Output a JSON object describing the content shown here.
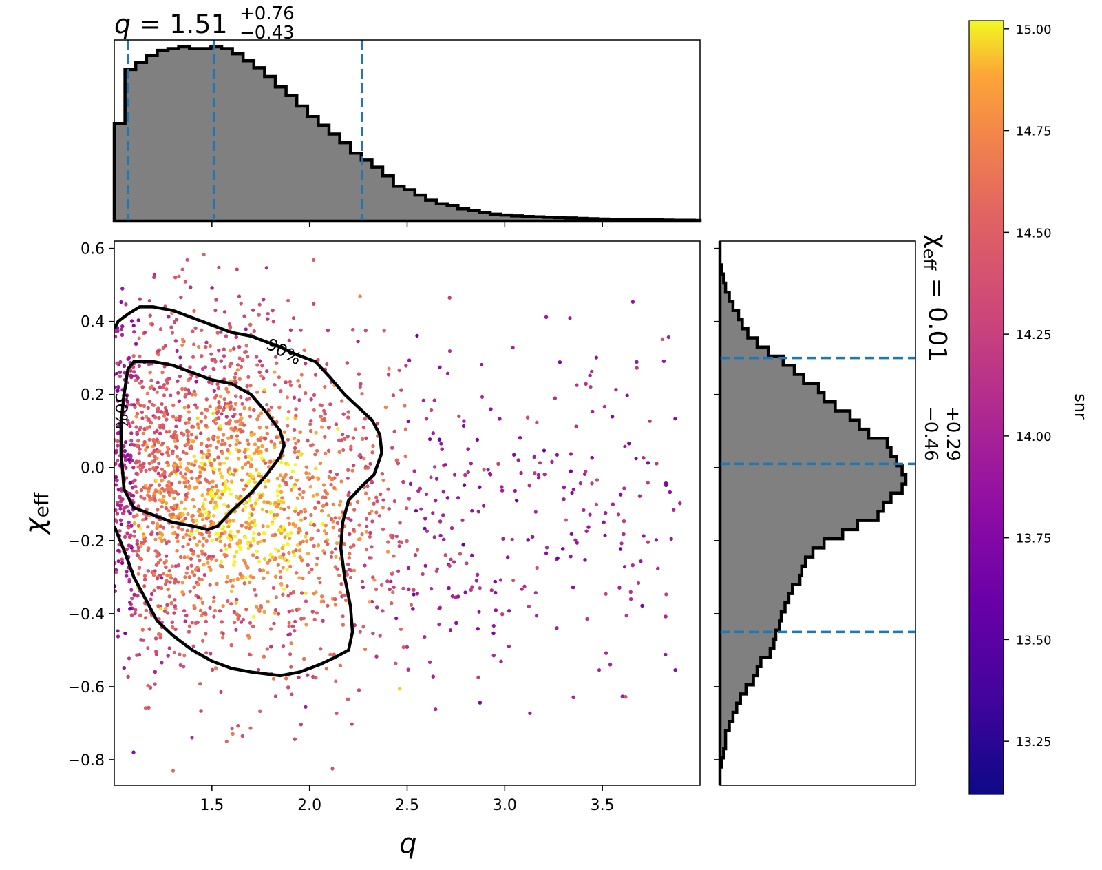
{
  "chart_data": {
    "type": "scatter",
    "x_axis": {
      "label": "q",
      "lim": [
        1.0,
        4.0
      ],
      "ticks": [
        1.5,
        2.0,
        2.5,
        3.0,
        3.5
      ],
      "tick_labels": [
        "1.5",
        "2.0",
        "2.5",
        "3.0",
        "3.5"
      ]
    },
    "y_axis": {
      "label_symbol": "χ",
      "label_subscript": "eff",
      "lim": [
        -0.87,
        0.62
      ],
      "ticks": [
        -0.8,
        -0.6,
        -0.4,
        -0.2,
        0.0,
        0.2,
        0.4,
        0.6
      ],
      "tick_labels": [
        "−0.8",
        "−0.6",
        "−0.4",
        "−0.2",
        "0.0",
        "0.2",
        "0.4",
        "0.6"
      ]
    },
    "colorbar": {
      "label": "snr",
      "colormap": "plasma",
      "lim": [
        13.12,
        15.02
      ],
      "ticks": [
        13.25,
        13.5,
        13.75,
        14.0,
        14.25,
        14.5,
        14.75,
        15.0
      ],
      "tick_labels": [
        "13.25",
        "13.50",
        "13.75",
        "14.00",
        "14.25",
        "14.50",
        "14.75",
        "15.00"
      ]
    },
    "contours": [
      {
        "label": "50%",
        "points": [
          [
            1.035,
            0.04
          ],
          [
            1.05,
            -0.06
          ],
          [
            1.1,
            -0.11
          ],
          [
            1.2,
            -0.13
          ],
          [
            1.3,
            -0.15
          ],
          [
            1.4,
            -0.16
          ],
          [
            1.48,
            -0.17
          ],
          [
            1.53,
            -0.16
          ],
          [
            1.6,
            -0.12
          ],
          [
            1.7,
            -0.07
          ],
          [
            1.78,
            -0.02
          ],
          [
            1.85,
            0.03
          ],
          [
            1.87,
            0.06
          ],
          [
            1.85,
            0.1
          ],
          [
            1.78,
            0.15
          ],
          [
            1.7,
            0.2
          ],
          [
            1.6,
            0.23
          ],
          [
            1.5,
            0.24
          ],
          [
            1.4,
            0.26
          ],
          [
            1.3,
            0.28
          ],
          [
            1.2,
            0.29
          ],
          [
            1.1,
            0.29
          ],
          [
            1.07,
            0.27
          ],
          [
            1.05,
            0.2
          ],
          [
            1.035,
            0.12
          ],
          [
            1.035,
            0.04
          ]
        ]
      },
      {
        "label": "90%",
        "points": [
          [
            1.0,
            -0.16
          ],
          [
            1.06,
            -0.24
          ],
          [
            1.1,
            -0.3
          ],
          [
            1.16,
            -0.36
          ],
          [
            1.22,
            -0.42
          ],
          [
            1.3,
            -0.46
          ],
          [
            1.4,
            -0.5
          ],
          [
            1.5,
            -0.53
          ],
          [
            1.6,
            -0.55
          ],
          [
            1.7,
            -0.56
          ],
          [
            1.85,
            -0.57
          ],
          [
            1.95,
            -0.56
          ],
          [
            2.05,
            -0.54
          ],
          [
            2.13,
            -0.52
          ],
          [
            2.2,
            -0.5
          ],
          [
            2.22,
            -0.45
          ],
          [
            2.21,
            -0.38
          ],
          [
            2.18,
            -0.3
          ],
          [
            2.16,
            -0.22
          ],
          [
            2.17,
            -0.15
          ],
          [
            2.2,
            -0.09
          ],
          [
            2.27,
            -0.05
          ],
          [
            2.33,
            -0.02
          ],
          [
            2.37,
            0.04
          ],
          [
            2.36,
            0.09
          ],
          [
            2.32,
            0.13
          ],
          [
            2.26,
            0.16
          ],
          [
            2.18,
            0.2
          ],
          [
            2.1,
            0.25
          ],
          [
            2.03,
            0.29
          ],
          [
            1.93,
            0.31
          ],
          [
            1.85,
            0.33
          ],
          [
            1.8,
            0.34
          ],
          [
            1.7,
            0.36
          ],
          [
            1.6,
            0.37
          ],
          [
            1.5,
            0.39
          ],
          [
            1.4,
            0.41
          ],
          [
            1.3,
            0.43
          ],
          [
            1.2,
            0.44
          ],
          [
            1.13,
            0.44
          ],
          [
            1.07,
            0.42
          ],
          [
            1.02,
            0.4
          ],
          [
            1.0,
            0.38
          ]
        ]
      }
    ],
    "top_histogram": {
      "title_prefix": "q = 1.51",
      "title_sup": "+0.76",
      "title_sub": "−0.43",
      "bin_start": 1.0,
      "bin_width": 0.055,
      "counts": [
        0.56,
        0.87,
        0.91,
        0.95,
        0.98,
        0.99,
        1.0,
        0.99,
        0.99,
        1.0,
        0.99,
        0.96,
        0.92,
        0.88,
        0.83,
        0.77,
        0.72,
        0.66,
        0.6,
        0.55,
        0.5,
        0.45,
        0.39,
        0.35,
        0.31,
        0.26,
        0.2,
        0.18,
        0.15,
        0.12,
        0.1,
        0.09,
        0.07,
        0.06,
        0.05,
        0.04,
        0.035,
        0.03,
        0.027,
        0.025,
        0.022,
        0.02,
        0.018,
        0.016,
        0.014,
        0.012,
        0.011,
        0.01,
        0.009,
        0.008,
        0.007,
        0.006,
        0.005,
        0.005,
        0.004
      ],
      "quantile_lines": [
        1.07,
        1.51,
        2.27
      ]
    },
    "right_histogram": {
      "title_symbol": "χ",
      "title_subscript": "eff",
      "title_value": " = 0.01",
      "title_sup": "+0.29",
      "title_sub": "−0.46",
      "bin_start": -0.87,
      "bin_width": 0.025,
      "counts": [
        0.0,
        0.0,
        0.01,
        0.02,
        0.03,
        0.03,
        0.05,
        0.07,
        0.09,
        0.11,
        0.14,
        0.18,
        0.2,
        0.22,
        0.27,
        0.29,
        0.3,
        0.32,
        0.33,
        0.35,
        0.37,
        0.39,
        0.43,
        0.44,
        0.46,
        0.5,
        0.56,
        0.66,
        0.74,
        0.85,
        0.88,
        0.92,
        0.98,
        1.0,
        0.98,
        0.95,
        0.92,
        0.9,
        0.8,
        0.75,
        0.7,
        0.62,
        0.56,
        0.53,
        0.45,
        0.4,
        0.34,
        0.26,
        0.2,
        0.15,
        0.12,
        0.1,
        0.07,
        0.05,
        0.03,
        0.02,
        0.01,
        0.0,
        0.0,
        0.0
      ],
      "quantile_lines": [
        -0.45,
        0.01,
        0.3
      ]
    }
  },
  "contour_labels": {
    "inner": "50%",
    "outer": "90%"
  }
}
